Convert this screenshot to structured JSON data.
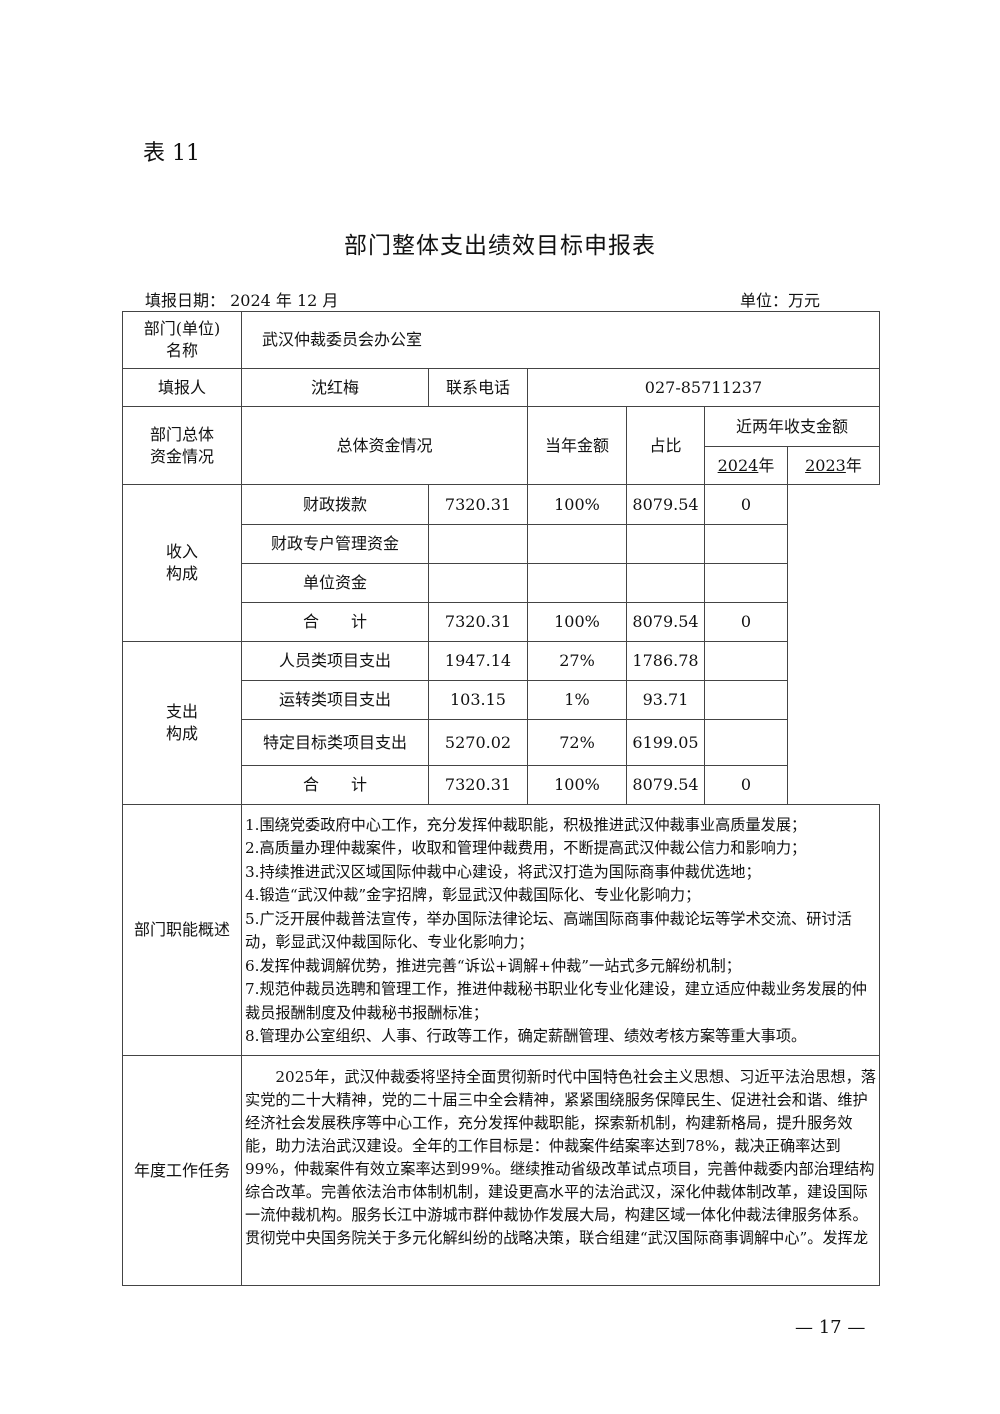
{
  "table_no": "表 11",
  "title": "部门整体支出绩效目标申报表",
  "fill_date": "填报日期： 2024 年 12 月",
  "unit": "单位：万元",
  "dept_label": "部门(单位)名称",
  "dept_name": "武汉仲裁委员会办公室",
  "filler_label": "填报人",
  "filler": "沈红梅",
  "phone_label": "联系电话",
  "phone": "027-85711237",
  "funds": {
    "section_label": "部门总体资金情况",
    "overall_label": "总体资金情况",
    "current_amount_label": "当年金额",
    "ratio_label": "占比",
    "two_year_label": "近两年收支金额",
    "year1": "2024",
    "year2": "2023",
    "year_suffix": "年",
    "income_label": "收入构成",
    "expense_label": "支出构成",
    "income": [
      {
        "item": "财政拨款",
        "amount": "7320.31",
        "ratio": "100%",
        "y2024": "8079.54",
        "y2023": "0"
      },
      {
        "item": "财政专户管理资金",
        "amount": "",
        "ratio": "",
        "y2024": "",
        "y2023": ""
      },
      {
        "item": "单位资金",
        "amount": "",
        "ratio": "",
        "y2024": "",
        "y2023": ""
      },
      {
        "item": "合　　计",
        "amount": "7320.31",
        "ratio": "100%",
        "y2024": "8079.54",
        "y2023": "0"
      }
    ],
    "expense": [
      {
        "item": "人员类项目支出",
        "amount": "1947.14",
        "ratio": "27%",
        "y2024": "1786.78",
        "y2023": ""
      },
      {
        "item": "运转类项目支出",
        "amount": "103.15",
        "ratio": "1%",
        "y2024": "93.71",
        "y2023": ""
      },
      {
        "item": "特定目标类项目支出",
        "amount": "5270.02",
        "ratio": "72%",
        "y2024": "6199.05",
        "y2023": ""
      },
      {
        "item": "合　　计",
        "amount": "7320.31",
        "ratio": "100%",
        "y2024": "8079.54",
        "y2023": "0"
      }
    ]
  },
  "functions_label": "部门职能概述",
  "functions": [
    "1.围绕党委政府中心工作，充分发挥仲裁职能，积极推进武汉仲裁事业高质量发展；",
    "2.高质量办理仲裁案件，收取和管理仲裁费用，不断提高武汉仲裁公信力和影响力；",
    "3.持续推进武汉区域国际仲裁中心建设，将武汉打造为国际商事仲裁优选地；",
    "4.锻造“武汉仲裁”金字招牌，彰显武汉仲裁国际化、专业化影响力；",
    "5.广泛开展仲裁普法宣传，举办国际法律论坛、高端国际商事仲裁论坛等学术交流、研讨活动，彰显武汉仲裁国际化、专业化影响力；",
    "6.发挥仲裁调解优势，推进完善“诉讼+调解+仲裁”一站式多元解纷机制；",
    "7.规范仲裁员选聘和管理工作，推进仲裁秘书职业化专业化建设，建立适应仲裁业务发展的仲裁员报酬制度及仲裁秘书报酬标准；",
    "8.管理办公室组织、人事、行政等工作，确定薪酬管理、绩效考核方案等重大事项。"
  ],
  "annual_label": "年度工作任务",
  "annual_text": "2025年，武汉仲裁委将坚持全面贯彻新时代中国特色社会主义思想、习近平法治思想，落实党的二十大精神，党的二十届三中全会精神，紧紧围绕服务保障民生、促进社会和谐、维护经济社会发展秩序等中心工作，充分发挥仲裁职能，探索新机制，构建新格局，提升服务效能，助力法治武汉建设。全年的工作目标是：仲裁案件结案率达到78%，裁决正确率达到99%，仲裁案件有效立案率达到99%。继续推动省级改革试点项目，完善仲裁委内部治理结构综合改革。完善依法治市体制机制，建设更高水平的法治武汉，深化仲裁体制改革，建设国际一流仲裁机构。服务长江中游城市群仲裁协作发展大局，构建区域一体化仲裁法律服务体系。贯彻党中央国务院关于多元化解纠纷的战略决策，联合组建“武汉国际商事调解中心”。发挥龙",
  "page_number": "— 17 —"
}
